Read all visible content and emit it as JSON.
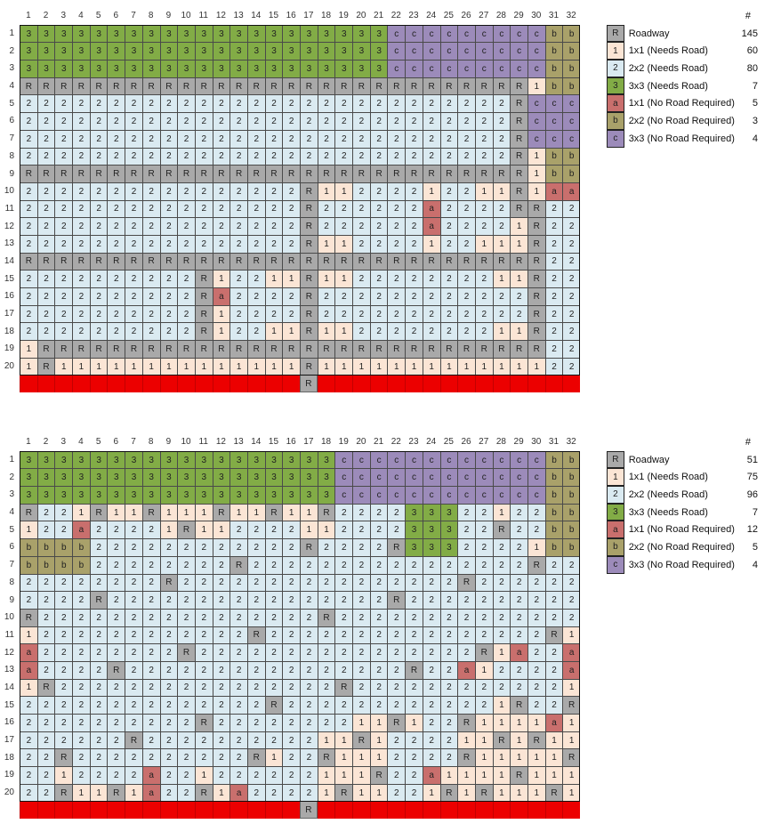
{
  "cellTypes": {
    "R": {
      "bg": "#A9A9A9",
      "name": "Roadway"
    },
    "1": {
      "bg": "#FBE5D5",
      "name": "1x1 (Needs Road)"
    },
    "2": {
      "bg": "#DAEAF1",
      "name": "2x2 (Needs Road)"
    },
    "3": {
      "bg": "#82AC46",
      "name": "3x3 (Needs Road)"
    },
    "a": {
      "bg": "#C96F6D",
      "name": "1x1 (No Road Required)"
    },
    "b": {
      "bg": "#A9A16A",
      "name": "2x2 (No Road Required)"
    },
    "c": {
      "bg": "#9C8BBA",
      "name": "3x3 (No Road Required)"
    }
  },
  "redBar": {
    "color": "#EC0000",
    "roadColumn": 17,
    "roadLabel": "R"
  },
  "sections": [
    {
      "columnHeaders": [
        1,
        2,
        3,
        4,
        5,
        6,
        7,
        8,
        9,
        10,
        11,
        12,
        13,
        14,
        15,
        16,
        17,
        18,
        19,
        20,
        21,
        22,
        23,
        24,
        25,
        26,
        27,
        28,
        29,
        30,
        31,
        32
      ],
      "rowHeaders": [
        1,
        2,
        3,
        4,
        5,
        6,
        7,
        8,
        9,
        10,
        11,
        12,
        13,
        14,
        15,
        16,
        17,
        18,
        19,
        20
      ],
      "rows": [
        "333333333333333333333cccccccccbb",
        "333333333333333333333cccccccccbb",
        "333333333333333333333cccccccccbb",
        "RRRRRRRRRRRRRRRRRRRRRRRRRRRRR1bb",
        "2222222222222222222222222222Rccc",
        "2222222222222222222222222222Rccc",
        "2222222222222222222222222222Rccc",
        "2222222222222222222222222222R1bb",
        "RRRRRRRRRRRRRRRRRRRRRRRRRRRRR1bb",
        "2222222222222222R11222212211R1aa",
        "2222222222222222R222222a2222RR22",
        "2222222222222222R222222a22221R22",
        "2222222222222222R112222122111R22",
        "RRRRRRRRRRRRRRRRRRRRRRRRRRRRRR22",
        "2222222222R12211R112222222211R22",
        "2222222222Ra2222R222222222222R22",
        "2222222222R12222R222222222222R22",
        "2222222222R12211R112222222211R22",
        "1RRRRRRRRRRRRRRRRRRRRRRRRRRRRR22",
        "1R11111111111111R111111111111122"
      ],
      "legend": {
        "countHeader": "#",
        "items": [
          {
            "key": "R",
            "label": "Roadway",
            "count": 145
          },
          {
            "key": "1",
            "label": "1x1 (Needs Road)",
            "count": 60
          },
          {
            "key": "2",
            "label": "2x2 (Needs Road)",
            "count": 80
          },
          {
            "key": "3",
            "label": "3x3 (Needs Road)",
            "count": 7
          },
          {
            "key": "a",
            "label": "1x1 (No Road Required)",
            "count": 5
          },
          {
            "key": "b",
            "label": "2x2 (No Road Required)",
            "count": 3
          },
          {
            "key": "c",
            "label": "3x3 (No Road Required)",
            "count": 4
          }
        ]
      }
    },
    {
      "columnHeaders": [
        1,
        2,
        3,
        4,
        5,
        6,
        7,
        8,
        9,
        10,
        11,
        12,
        13,
        14,
        15,
        16,
        17,
        18,
        19,
        20,
        21,
        22,
        23,
        24,
        25,
        26,
        27,
        28,
        29,
        30,
        31,
        32
      ],
      "rowHeaders": [
        1,
        2,
        3,
        4,
        5,
        6,
        7,
        8,
        9,
        10,
        11,
        12,
        13,
        14,
        15,
        16,
        17,
        18,
        19,
        20
      ],
      "rows": [
        "333333333333333333ccccccccccccbb",
        "333333333333333333ccccccccccccbb",
        "333333333333333333ccccccccccccbb",
        "R221R11R111R11R11R222233322122bb",
        "122a22221R11222211222233322R22bb",
        "bbbb222222222222R2222R33322221bb",
        "bbbb22222222R2222222222222222R22",
        "22222222R2222222222222222R222222",
        "2222R2222222222222222R2222222222",
        "R2222222222222222R22222222222222",
        "1222222222222R2222222222222222R1",
        "a22222222R2222222222222222R1a22a",
        "a2222R2222222222222222R22a12222a",
        "1R2222222222222222R2222222222221",
        "22222222222222R2222222222221R22R",
        "2222222222R2222222211R122R1111a1",
        "222222R222222222211R1222211R1R11",
        "22R2222222222R122R1112222R11111R",
        "2212222a221222222111R22a1111R111",
        "22R11R1a22R1a22221R11221R1R111R1"
      ],
      "legend": {
        "countHeader": "#",
        "items": [
          {
            "key": "R",
            "label": "Roadway",
            "count": 51
          },
          {
            "key": "1",
            "label": "1x1 (Needs Road)",
            "count": 75
          },
          {
            "key": "2",
            "label": "2x2 (Needs Road)",
            "count": 96
          },
          {
            "key": "3",
            "label": "3x3 (Needs Road)",
            "count": 7
          },
          {
            "key": "a",
            "label": "1x1 (No Road Required)",
            "count": 12
          },
          {
            "key": "b",
            "label": "2x2 (No Road Required)",
            "count": 5
          },
          {
            "key": "c",
            "label": "3x3 (No Road Required)",
            "count": 4
          }
        ]
      }
    }
  ]
}
